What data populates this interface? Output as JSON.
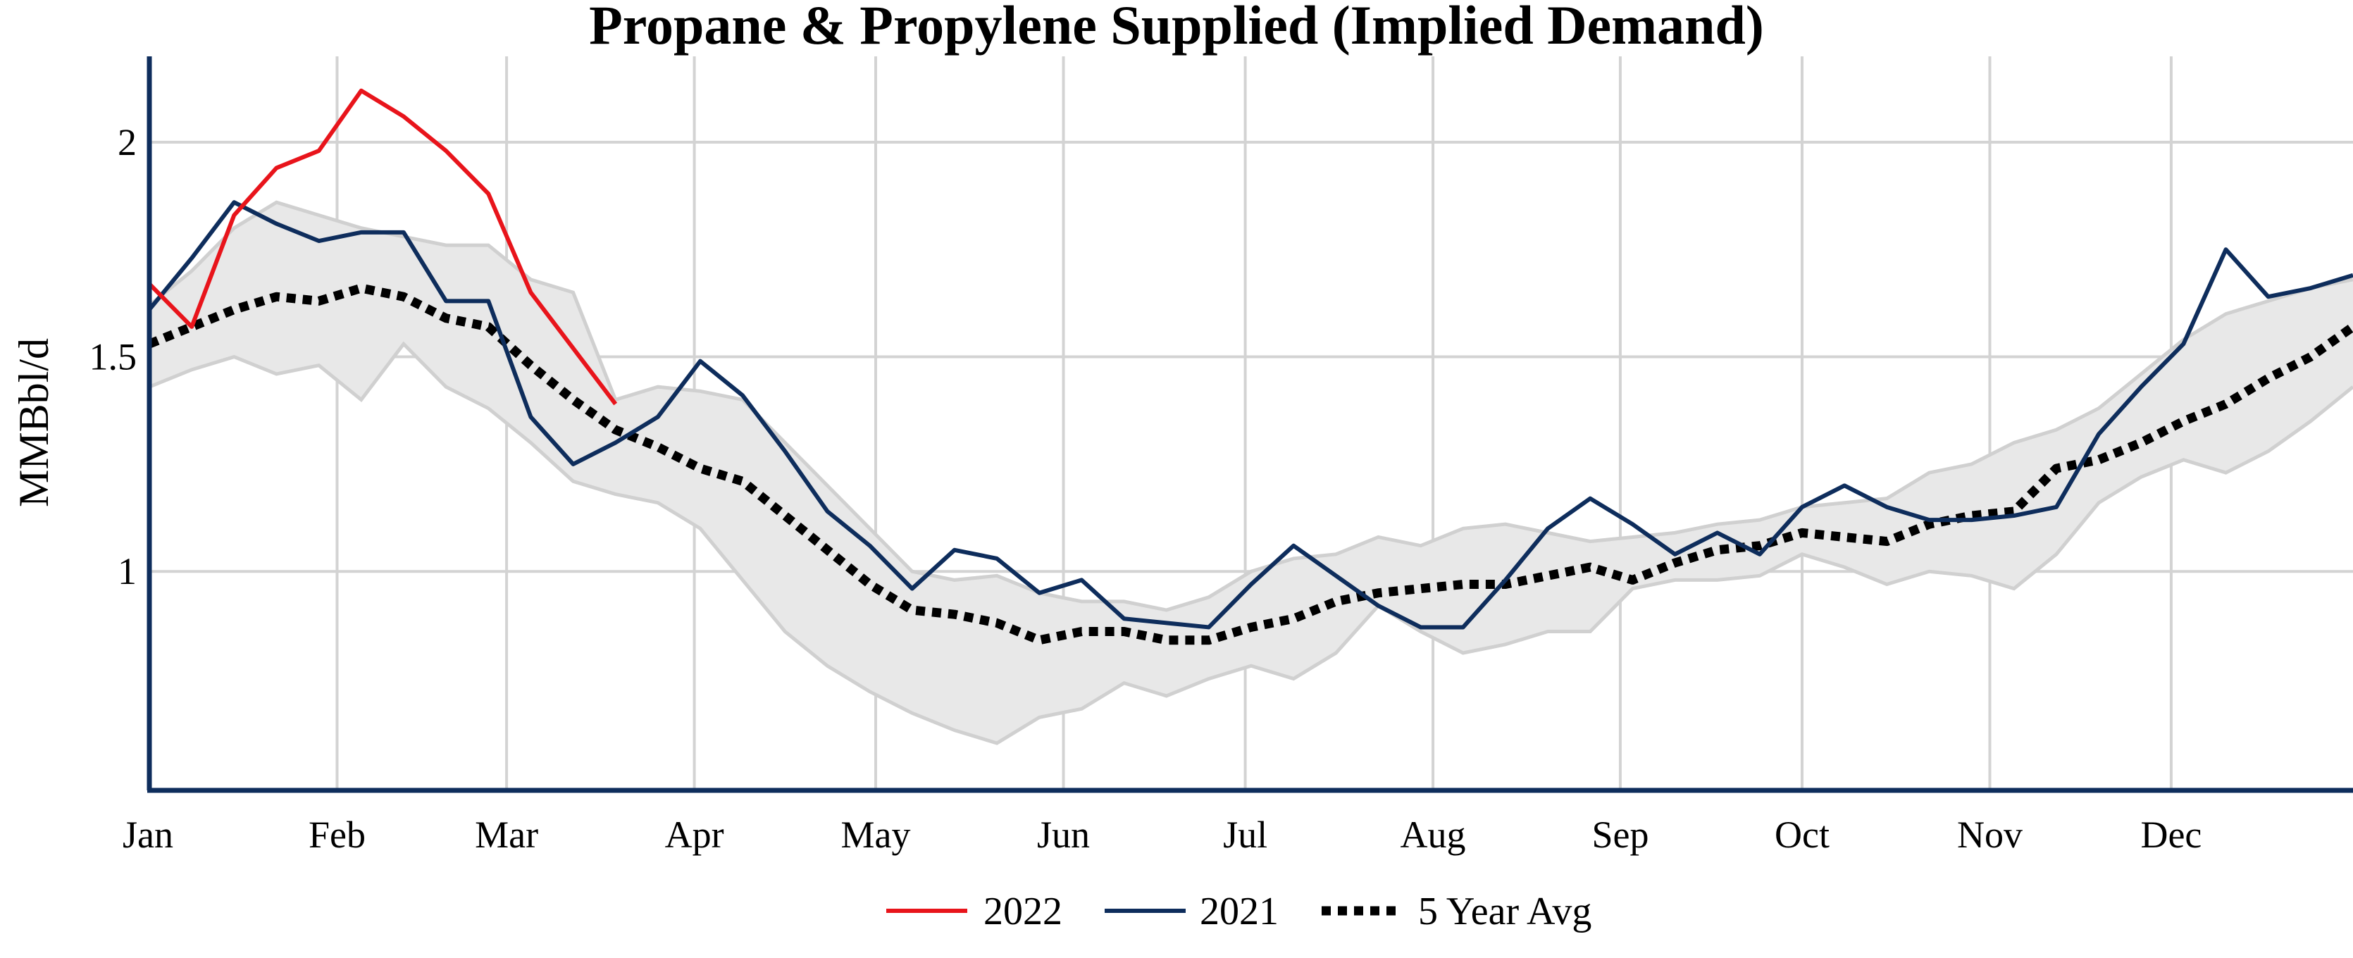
{
  "chart_data": {
    "type": "line",
    "title": "Propane & Propylene Supplied (Implied Demand)",
    "ylabel": "MMBbl/d",
    "xlabel": "",
    "x_unit": "week_of_year",
    "xlim": [
      1,
      53
    ],
    "ylim": [
      0.49,
      2.2
    ],
    "yticks": [
      1,
      1.5,
      2
    ],
    "ytick_labels": [
      "1",
      "1.5",
      "2"
    ],
    "month_labels": [
      "Jan",
      "Feb",
      "Mar",
      "Apr",
      "May",
      "Jun",
      "Jul",
      "Aug",
      "Sep",
      "Oct",
      "Nov",
      "Dec"
    ],
    "month_weeks": [
      1,
      5.43,
      9.43,
      13.86,
      18.14,
      22.57,
      26.86,
      31.29,
      35.71,
      40.0,
      44.43,
      48.71
    ],
    "grid": true,
    "legend_position": "bottom-center",
    "range_band": {
      "color": "#e8e8e8",
      "edge_color": "#d0d0d0",
      "upper": [
        [
          1,
          1.62
        ],
        [
          2,
          1.7
        ],
        [
          3,
          1.8
        ],
        [
          4,
          1.86
        ],
        [
          5,
          1.83
        ],
        [
          6,
          1.8
        ],
        [
          7,
          1.78
        ],
        [
          8,
          1.76
        ],
        [
          9,
          1.76
        ],
        [
          10,
          1.68
        ],
        [
          11,
          1.65
        ],
        [
          12,
          1.4
        ],
        [
          13,
          1.43
        ],
        [
          14,
          1.42
        ],
        [
          15,
          1.4
        ],
        [
          16,
          1.3
        ],
        [
          17,
          1.2
        ],
        [
          18,
          1.1
        ],
        [
          19,
          1.0
        ],
        [
          20,
          0.98
        ],
        [
          21,
          0.99
        ],
        [
          22,
          0.95
        ],
        [
          23,
          0.93
        ],
        [
          24,
          0.93
        ],
        [
          25,
          0.91
        ],
        [
          26,
          0.94
        ],
        [
          27,
          1.0
        ],
        [
          28,
          1.03
        ],
        [
          29,
          1.04
        ],
        [
          30,
          1.08
        ],
        [
          31,
          1.06
        ],
        [
          32,
          1.1
        ],
        [
          33,
          1.11
        ],
        [
          34,
          1.09
        ],
        [
          35,
          1.07
        ],
        [
          36,
          1.08
        ],
        [
          37,
          1.09
        ],
        [
          38,
          1.11
        ],
        [
          39,
          1.12
        ],
        [
          40,
          1.15
        ],
        [
          41,
          1.16
        ],
        [
          42,
          1.17
        ],
        [
          43,
          1.23
        ],
        [
          44,
          1.25
        ],
        [
          45,
          1.3
        ],
        [
          46,
          1.33
        ],
        [
          47,
          1.38
        ],
        [
          48,
          1.46
        ],
        [
          49,
          1.54
        ],
        [
          50,
          1.6
        ],
        [
          51,
          1.63
        ],
        [
          52,
          1.66
        ],
        [
          53,
          1.68
        ]
      ],
      "lower": [
        [
          1,
          1.43
        ],
        [
          2,
          1.47
        ],
        [
          3,
          1.5
        ],
        [
          4,
          1.46
        ],
        [
          5,
          1.48
        ],
        [
          6,
          1.4
        ],
        [
          7,
          1.53
        ],
        [
          8,
          1.43
        ],
        [
          9,
          1.38
        ],
        [
          10,
          1.3
        ],
        [
          11,
          1.21
        ],
        [
          12,
          1.18
        ],
        [
          13,
          1.16
        ],
        [
          14,
          1.1
        ],
        [
          15,
          0.98
        ],
        [
          16,
          0.86
        ],
        [
          17,
          0.78
        ],
        [
          18,
          0.72
        ],
        [
          19,
          0.67
        ],
        [
          20,
          0.63
        ],
        [
          21,
          0.6
        ],
        [
          22,
          0.66
        ],
        [
          23,
          0.68
        ],
        [
          24,
          0.74
        ],
        [
          25,
          0.71
        ],
        [
          26,
          0.75
        ],
        [
          27,
          0.78
        ],
        [
          28,
          0.75
        ],
        [
          29,
          0.81
        ],
        [
          30,
          0.92
        ],
        [
          31,
          0.86
        ],
        [
          32,
          0.81
        ],
        [
          33,
          0.83
        ],
        [
          34,
          0.86
        ],
        [
          35,
          0.86
        ],
        [
          36,
          0.96
        ],
        [
          37,
          0.98
        ],
        [
          38,
          0.98
        ],
        [
          39,
          0.99
        ],
        [
          40,
          1.04
        ],
        [
          41,
          1.01
        ],
        [
          42,
          0.97
        ],
        [
          43,
          1.0
        ],
        [
          44,
          0.99
        ],
        [
          45,
          0.96
        ],
        [
          46,
          1.04
        ],
        [
          47,
          1.16
        ],
        [
          48,
          1.22
        ],
        [
          49,
          1.26
        ],
        [
          50,
          1.23
        ],
        [
          51,
          1.28
        ],
        [
          52,
          1.35
        ],
        [
          53,
          1.43
        ]
      ]
    },
    "series": [
      {
        "name": "2022",
        "color": "#e8141b",
        "dash": "solid",
        "points": [
          [
            1,
            1.67
          ],
          [
            2,
            1.57
          ],
          [
            3,
            1.83
          ],
          [
            4,
            1.94
          ],
          [
            5,
            1.98
          ],
          [
            6,
            2.12
          ],
          [
            7,
            2.06
          ],
          [
            8,
            1.98
          ],
          [
            9,
            1.88
          ],
          [
            10,
            1.65
          ],
          [
            11,
            1.52
          ],
          [
            12,
            1.39
          ]
        ]
      },
      {
        "name": "2021",
        "color": "#0e2d5c",
        "dash": "solid",
        "points": [
          [
            1,
            1.61
          ],
          [
            2,
            1.73
          ],
          [
            3,
            1.86
          ],
          [
            4,
            1.81
          ],
          [
            5,
            1.77
          ],
          [
            6,
            1.79
          ],
          [
            7,
            1.79
          ],
          [
            8,
            1.63
          ],
          [
            9,
            1.63
          ],
          [
            10,
            1.36
          ],
          [
            11,
            1.25
          ],
          [
            12,
            1.3
          ],
          [
            13,
            1.36
          ],
          [
            14,
            1.49
          ],
          [
            15,
            1.41
          ],
          [
            16,
            1.28
          ],
          [
            17,
            1.14
          ],
          [
            18,
            1.06
          ],
          [
            19,
            0.96
          ],
          [
            20,
            1.05
          ],
          [
            21,
            1.03
          ],
          [
            22,
            0.95
          ],
          [
            23,
            0.98
          ],
          [
            24,
            0.89
          ],
          [
            25,
            0.88
          ],
          [
            26,
            0.87
          ],
          [
            27,
            0.97
          ],
          [
            28,
            1.06
          ],
          [
            29,
            0.99
          ],
          [
            30,
            0.92
          ],
          [
            31,
            0.87
          ],
          [
            32,
            0.87
          ],
          [
            33,
            0.98
          ],
          [
            34,
            1.1
          ],
          [
            35,
            1.17
          ],
          [
            36,
            1.11
          ],
          [
            37,
            1.04
          ],
          [
            38,
            1.09
          ],
          [
            39,
            1.04
          ],
          [
            40,
            1.15
          ],
          [
            41,
            1.2
          ],
          [
            42,
            1.15
          ],
          [
            43,
            1.12
          ],
          [
            44,
            1.12
          ],
          [
            45,
            1.13
          ],
          [
            46,
            1.15
          ],
          [
            47,
            1.32
          ],
          [
            48,
            1.43
          ],
          [
            49,
            1.53
          ],
          [
            50,
            1.75
          ],
          [
            51,
            1.64
          ],
          [
            52,
            1.66
          ],
          [
            53,
            1.69
          ]
        ]
      },
      {
        "name": "5 Year Avg",
        "color": "#000000",
        "dash": "dotted",
        "points": [
          [
            1,
            1.53
          ],
          [
            2,
            1.57
          ],
          [
            3,
            1.61
          ],
          [
            4,
            1.64
          ],
          [
            5,
            1.63
          ],
          [
            6,
            1.66
          ],
          [
            7,
            1.64
          ],
          [
            8,
            1.59
          ],
          [
            9,
            1.57
          ],
          [
            10,
            1.48
          ],
          [
            11,
            1.4
          ],
          [
            12,
            1.33
          ],
          [
            13,
            1.29
          ],
          [
            14,
            1.24
          ],
          [
            15,
            1.21
          ],
          [
            16,
            1.13
          ],
          [
            17,
            1.05
          ],
          [
            18,
            0.97
          ],
          [
            19,
            0.91
          ],
          [
            20,
            0.9
          ],
          [
            21,
            0.88
          ],
          [
            22,
            0.84
          ],
          [
            23,
            0.86
          ],
          [
            24,
            0.86
          ],
          [
            25,
            0.84
          ],
          [
            26,
            0.84
          ],
          [
            27,
            0.87
          ],
          [
            28,
            0.89
          ],
          [
            29,
            0.93
          ],
          [
            30,
            0.95
          ],
          [
            31,
            0.96
          ],
          [
            32,
            0.97
          ],
          [
            33,
            0.97
          ],
          [
            34,
            0.99
          ],
          [
            35,
            1.01
          ],
          [
            36,
            0.98
          ],
          [
            37,
            1.02
          ],
          [
            38,
            1.05
          ],
          [
            39,
            1.06
          ],
          [
            40,
            1.09
          ],
          [
            41,
            1.08
          ],
          [
            42,
            1.07
          ],
          [
            43,
            1.11
          ],
          [
            44,
            1.13
          ],
          [
            45,
            1.14
          ],
          [
            46,
            1.24
          ],
          [
            47,
            1.26
          ],
          [
            48,
            1.3
          ],
          [
            49,
            1.35
          ],
          [
            50,
            1.39
          ],
          [
            51,
            1.45
          ],
          [
            52,
            1.5
          ],
          [
            53,
            1.57
          ]
        ]
      }
    ]
  }
}
